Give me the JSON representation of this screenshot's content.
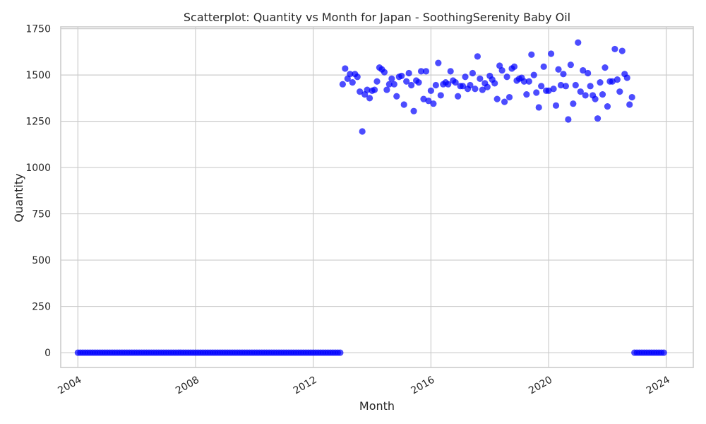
{
  "chart_data": {
    "type": "scatter",
    "title": "Scatterplot: Quantity vs Month for Japan - SoothingSerenity Baby Oil",
    "xlabel": "Month",
    "ylabel": "Quantity",
    "x_ticks": [
      "2004",
      "2008",
      "2012",
      "2016",
      "2020",
      "2024"
    ],
    "y_ticks": [
      "0",
      "250",
      "500",
      "750",
      "1000",
      "1250",
      "1500",
      "1750"
    ],
    "xlim": [
      "2003-06-01",
      "2024-12-01"
    ],
    "ylim": [
      -80,
      1760
    ],
    "grid": true,
    "point_color": "#0000ff",
    "point_opacity": 0.7,
    "series": [
      {
        "x_start": "2004-01",
        "x_step": "1 month",
        "values": [
          0,
          0,
          0,
          0,
          0,
          0,
          0,
          0,
          0,
          0,
          0,
          0,
          0,
          0,
          0,
          0,
          0,
          0,
          0,
          0,
          0,
          0,
          0,
          0,
          0,
          0,
          0,
          0,
          0,
          0,
          0,
          0,
          0,
          0,
          0,
          0,
          0,
          0,
          0,
          0,
          0,
          0,
          0,
          0,
          0,
          0,
          0,
          0,
          0,
          0,
          0,
          0,
          0,
          0,
          0,
          0,
          0,
          0,
          0,
          0,
          0,
          0,
          0,
          0,
          0,
          0,
          0,
          0,
          0,
          0,
          0,
          0,
          0,
          0,
          0,
          0,
          0,
          0,
          0,
          0,
          0,
          0,
          0,
          0,
          0,
          0,
          0,
          0,
          0,
          0,
          0,
          0,
          0,
          0,
          0,
          0,
          0,
          0,
          0,
          0,
          0,
          0,
          0,
          0,
          0,
          0,
          0,
          0,
          1450,
          1535,
          1480,
          1505,
          1460,
          1505,
          1490,
          1410,
          1195,
          1395,
          1420,
          1375,
          1415,
          1420,
          1465,
          1540,
          1530,
          1515,
          1420,
          1450,
          1480,
          1450,
          1385,
          1490,
          1495,
          1340,
          1465,
          1510,
          1445,
          1305,
          1470,
          1460,
          1520,
          1370,
          1520,
          1360,
          1415,
          1345,
          1445,
          1565,
          1390,
          1450,
          1460,
          1450,
          1520,
          1470,
          1460,
          1385,
          1440,
          1440,
          1490,
          1425,
          1445,
          1510,
          1425,
          1600,
          1480,
          1420,
          1455,
          1435,
          1495,
          1475,
          1455,
          1370,
          1550,
          1525,
          1355,
          1490,
          1380,
          1535,
          1545,
          1470,
          1480,
          1485,
          1465,
          1395,
          1465,
          1610,
          1500,
          1405,
          1325,
          1440,
          1545,
          1415,
          1415,
          1615,
          1425,
          1335,
          1530,
          1445,
          1505,
          1440,
          1260,
          1555,
          1345,
          1445,
          1675,
          1410,
          1525,
          1390,
          1510,
          1440,
          1390,
          1370,
          1265,
          1460,
          1395,
          1540,
          1330,
          1465,
          1465,
          1640,
          1475,
          1410,
          1630,
          1505,
          1485,
          1340,
          1380,
          0,
          0,
          0,
          0,
          0,
          0,
          0,
          0,
          0,
          0,
          0,
          0,
          0
        ]
      }
    ]
  }
}
